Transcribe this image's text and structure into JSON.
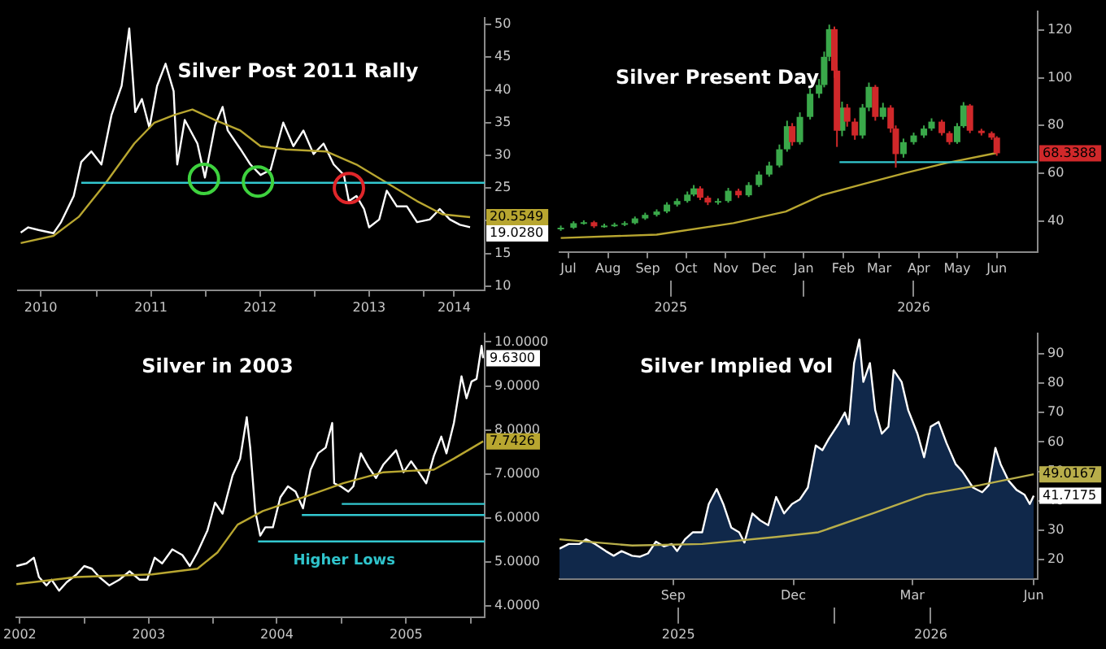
{
  "chart_data": [
    {
      "type": "line",
      "title": "Silver Post 2011 Rally",
      "xlim": [
        2010.28,
        2014.56
      ],
      "xticks": [
        {
          "value": 2010.49,
          "label": "2010"
        },
        {
          "value": 2011,
          "label": null
        },
        {
          "value": 2011.5,
          "label": "2011"
        },
        {
          "value": 2012,
          "label": null
        },
        {
          "value": 2012.5,
          "label": "2012"
        },
        {
          "value": 2013,
          "label": null
        },
        {
          "value": 2013.5,
          "label": "2013"
        },
        {
          "value": 2014,
          "label": null
        },
        {
          "value": 2014.28,
          "label": "2014"
        }
      ],
      "ylim": [
        9.4,
        51
      ],
      "yticks": [
        10,
        15,
        {
          "value": 20,
          "label": null
        },
        25,
        30,
        35,
        40,
        45,
        50
      ],
      "series": [
        {
          "color": "#ffffff",
          "x": [
            2010.306,
            2010.375,
            2010.468,
            2010.606,
            2010.676,
            2010.792,
            2010.861,
            2010.954,
            2011.046,
            2011.139,
            2011.231,
            2011.301,
            2011.356,
            2011.417,
            2011.486,
            2011.556,
            2011.634,
            2011.708,
            2011.741,
            2011.81,
            2011.926,
            2011.995,
            2012.088,
            2012.157,
            2012.204,
            2012.319,
            2012.412,
            2012.505,
            2012.597,
            2012.713,
            2012.806,
            2012.898,
            2012.991,
            2013.083,
            2013.176,
            2013.269,
            2013.315,
            2013.384,
            2013.454,
            2013.5,
            2013.593,
            2013.662,
            2013.755,
            2013.847,
            2013.94,
            2014.056,
            2014.148,
            2014.241,
            2014.333,
            2014.426
          ],
          "values": [
            18.2,
            19.0,
            18.6,
            18.1,
            19.8,
            23.8,
            29.0,
            30.6,
            28.6,
            36.2,
            40.6,
            49.4,
            36.6,
            38.6,
            34.2,
            40.6,
            44.0,
            39.8,
            28.6,
            35.4,
            31.8,
            26.6,
            34.6,
            37.4,
            33.8,
            31.0,
            28.6,
            27.0,
            27.8,
            35.0,
            31.4,
            33.8,
            30.2,
            31.8,
            28.6,
            27.0,
            23.0,
            23.8,
            21.8,
            19.0,
            20.2,
            24.6,
            22.2,
            22.2,
            19.8,
            20.2,
            21.8,
            20.2,
            19.4,
            19.028
          ],
          "value_labels": [
            null,
            null,
            null,
            null,
            null,
            null,
            null,
            null,
            null,
            null,
            null,
            null,
            null,
            null,
            null,
            null,
            null,
            null,
            null,
            null,
            null,
            null,
            null,
            null,
            null,
            null,
            null,
            null,
            null,
            null,
            null,
            null,
            null,
            null,
            null,
            null,
            null,
            null,
            null,
            null,
            null,
            null,
            null,
            null,
            null,
            null,
            null,
            null,
            null,
            "19.0280"
          ]
        },
        {
          "color": "#b8a630",
          "x": [
            2010.306,
            2010.606,
            2010.838,
            2011.069,
            2011.347,
            2011.532,
            2011.718,
            2011.88,
            2012.088,
            2012.319,
            2012.505,
            2012.736,
            2013.106,
            2013.384,
            2013.662,
            2013.94,
            2014.171,
            2014.426
          ],
          "values": [
            16.6,
            17.7,
            20.6,
            25.4,
            31.8,
            35.0,
            36.2,
            37.0,
            35.4,
            33.8,
            31.4,
            30.9,
            30.6,
            28.6,
            25.8,
            23.0,
            21.0,
            20.5549
          ],
          "value_labels": [
            null,
            null,
            null,
            null,
            null,
            null,
            null,
            null,
            null,
            null,
            null,
            null,
            null,
            null,
            null,
            null,
            null,
            "20.5549"
          ]
        },
        {
          "color": "#33c8d0",
          "x": [
            2010.861,
            2014.56
          ],
          "values": [
            25.8,
            25.8
          ]
        },
        {
          "type": "scatter",
          "color": "#3ed23e",
          "marker": "circle",
          "x": [
            2011.986,
            2012.481
          ],
          "values": [
            26.4,
            26.0
          ]
        },
        {
          "type": "scatter",
          "color": "#e0262a",
          "marker": "circle",
          "x": [
            2013.315
          ],
          "values": [
            25.0
          ]
        }
      ]
    },
    {
      "type": "candlestick",
      "title": "Silver Present Day",
      "xlim": [
        "2025-06-24",
        "2026-07-03"
      ],
      "xticks": [
        {
          "value": "2025-07",
          "label": "Jul"
        },
        {
          "value": "2025-08",
          "label": "Aug"
        },
        {
          "value": "2025-09",
          "label": "Sep"
        },
        {
          "value": "2025-10",
          "label": "Oct"
        },
        {
          "value": "2025-11",
          "label": "Nov"
        },
        {
          "value": "2025-12",
          "label": "Dec"
        },
        {
          "value": "2026-01",
          "label": "Jan"
        },
        {
          "value": "2026-02",
          "label": "Feb"
        },
        {
          "value": "2026-03",
          "label": "Mar"
        },
        {
          "value": "2026-04",
          "label": "Apr"
        },
        {
          "value": "2026-05",
          "label": "May"
        },
        {
          "value": "2026-06",
          "label": "Jun"
        }
      ],
      "x2lim": [
        "2025-06-24",
        "2026-07-03"
      ],
      "x2ticks": [
        {
          "value": "2025-09-19",
          "label": "2025"
        },
        {
          "value": "2026-01-01",
          "label": null
        },
        {
          "value": "2026-03-28",
          "label": "2026"
        }
      ],
      "ylim": [
        27,
        128
      ],
      "yticks": [
        40,
        60,
        80,
        100,
        120
      ],
      "series": [
        {
          "color": "#3aa84a",
          "x": [
            "2025-06-25",
            "2025-07-05",
            "2025-07-13",
            "2025-07-29",
            "2025-08-06",
            "2025-08-14",
            "2025-08-22",
            "2025-08-30",
            "2025-09-08",
            "2025-09-16",
            "2025-09-24",
            "2025-10-02",
            "2025-10-07",
            "2025-10-26",
            "2025-11-03",
            "2025-11-19",
            "2025-11-27",
            "2025-12-05",
            "2025-12-13",
            "2025-12-19",
            "2025-12-29",
            "2026-01-06",
            "2026-01-13",
            "2026-01-17",
            "2026-01-21",
            "2026-01-31",
            "2026-02-16",
            "2026-02-21",
            "2026-03-04",
            "2026-03-20",
            "2026-03-28",
            "2026-04-05",
            "2026-04-11",
            "2026-05-01",
            "2026-05-06"
          ],
          "ohlc": [
            [
              36.5,
              38,
              35.8,
              37.1
            ],
            [
              37.1,
              39.8,
              36.6,
              39
            ],
            [
              39,
              40.2,
              38.4,
              39.4
            ],
            [
              37.7,
              38.8,
              37.1,
              38
            ],
            [
              38,
              39.2,
              37.4,
              38.4
            ],
            [
              38.4,
              39.8,
              37.8,
              39
            ],
            [
              39,
              41.8,
              38.5,
              41
            ],
            [
              41,
              43.4,
              40.4,
              42.5
            ],
            [
              42.5,
              44.8,
              41.8,
              43.9
            ],
            [
              43.9,
              47.8,
              43.2,
              46.8
            ],
            [
              46.8,
              49.4,
              46,
              48.3
            ],
            [
              48.3,
              52.3,
              47.6,
              51
            ],
            [
              51,
              55,
              50.3,
              53.6
            ],
            [
              47.7,
              49.4,
              46.8,
              48.3
            ],
            [
              48.3,
              53.8,
              47.6,
              52.6
            ],
            [
              50.7,
              56.2,
              50,
              55
            ],
            [
              55,
              60.8,
              54.2,
              59.4
            ],
            [
              59.4,
              64.8,
              58.5,
              63.2
            ],
            [
              63.2,
              72,
              62.4,
              70
            ],
            [
              70,
              82,
              69,
              79.7
            ],
            [
              73,
              85.5,
              72,
              83.6
            ],
            [
              83.6,
              95.5,
              82.5,
              93.3
            ],
            [
              93.3,
              99.5,
              91.5,
              97
            ],
            [
              97,
              111,
              96,
              108.8
            ],
            [
              108.8,
              122.3,
              107,
              120.4
            ],
            [
              77.8,
              90,
              75.5,
              87.5
            ],
            [
              75.8,
              89,
              74.5,
              87.5
            ],
            [
              87.5,
              98,
              86,
              96.2
            ],
            [
              83.6,
              89.5,
              82.5,
              87.5
            ],
            [
              68,
              74.5,
              66.5,
              73
            ],
            [
              73,
              77,
              72,
              75.8
            ],
            [
              75.8,
              80,
              74.8,
              78.7
            ],
            [
              78.7,
              83,
              77.8,
              81.6
            ],
            [
              73,
              81,
              72.3,
              79.7
            ],
            [
              79.7,
              89.8,
              79,
              88.4
            ]
          ]
        },
        {
          "color": "#d0282a",
          "x": [
            "2025-07-21",
            "2025-10-12",
            "2025-10-18",
            "2025-11-11",
            "2025-12-23",
            "2026-01-25",
            "2026-01-27",
            "2026-02-04",
            "2026-02-10",
            "2026-02-26",
            "2026-03-10",
            "2026-03-14",
            "2026-04-19",
            "2026-04-25",
            "2026-05-11",
            "2026-05-20",
            "2026-05-28",
            "2026-06-01"
          ],
          "ohlc": [
            [
              39.4,
              40,
              37,
              37.7
            ],
            [
              53.6,
              54.5,
              48.7,
              49.7
            ],
            [
              49.7,
              50.5,
              46.6,
              47.7
            ],
            [
              52.6,
              53.5,
              49.6,
              50.7
            ],
            [
              79.7,
              81,
              71.5,
              73
            ],
            [
              120.4,
              121.5,
              100,
              103
            ],
            [
              103,
              104.5,
              71,
              77.8
            ],
            [
              87.5,
              89,
              79.5,
              81.6
            ],
            [
              81.6,
              83,
              74,
              75.8
            ],
            [
              96.2,
              97,
              82,
              83.6
            ],
            [
              87.5,
              88.5,
              77,
              78.7
            ],
            [
              78.7,
              80,
              62.3,
              68
            ],
            [
              81.6,
              82.4,
              75.8,
              76.8
            ],
            [
              76.8,
              77.6,
              72,
              73
            ],
            [
              88.4,
              89,
              76.8,
              77.8
            ],
            [
              77.8,
              78.6,
              75.8,
              76.8
            ],
            [
              76.8,
              77.5,
              74,
              74.9
            ],
            [
              74.9,
              75.5,
              67.3,
              68.3388
            ]
          ],
          "value_labels": [
            null,
            null,
            null,
            null,
            null,
            null,
            null,
            null,
            null,
            null,
            null,
            null,
            null,
            null,
            null,
            null,
            null,
            "68.3388"
          ]
        },
        {
          "type": "line",
          "color": "#b8a630",
          "x": [
            "2025-06-25",
            "2025-09-08",
            "2025-11-07",
            "2025-12-18",
            "2026-01-15",
            "2026-02-17",
            "2026-03-21",
            "2026-04-22",
            "2026-06-01"
          ],
          "values": [
            32.8,
            34.2,
            39,
            43.9,
            50.7,
            55.5,
            60,
            64.2,
            68.5
          ]
        },
        {
          "type": "line",
          "color": "#33c8d0",
          "x": [
            "2026-01-29",
            "2026-07-03"
          ],
          "values": [
            64.6,
            64.6
          ]
        }
      ]
    },
    {
      "type": "line",
      "title": "Silver in 2003",
      "xlim": [
        2002.47,
        2006.11
      ],
      "xticks": [
        {
          "value": 2002.5,
          "label": "2002"
        },
        {
          "value": 2003,
          "label": null
        },
        {
          "value": 2003.5,
          "label": "2003"
        },
        {
          "value": 2004,
          "label": null
        },
        {
          "value": 2004.496,
          "label": "2004"
        },
        {
          "value": 2005,
          "label": null
        },
        {
          "value": 2005.5,
          "label": "2005"
        },
        {
          "value": 2006,
          "label": null
        }
      ],
      "ylim": [
        3.75,
        10.2
      ],
      "yticks": [
        {
          "value": 4,
          "label": "4.0000"
        },
        {
          "value": 5,
          "label": "5.0000"
        },
        {
          "value": 6,
          "label": "6.0000"
        },
        {
          "value": 7,
          "label": "7.0000"
        },
        {
          "value": 8,
          "label": "8.0000"
        },
        {
          "value": 9,
          "label": "9.0000"
        },
        {
          "value": 10,
          "label": "10.0000"
        }
      ],
      "annotations": [
        "Higher Lows"
      ],
      "series": [
        {
          "color": "#ffffff",
          "x": [
            2002.473,
            2002.551,
            2002.609,
            2002.648,
            2002.707,
            2002.746,
            2002.805,
            2002.863,
            2002.941,
            2003.0,
            2003.059,
            2003.117,
            2003.195,
            2003.273,
            2003.352,
            2003.43,
            2003.488,
            2003.547,
            2003.605,
            2003.684,
            2003.762,
            2003.82,
            2003.879,
            2003.957,
            2004.016,
            2004.074,
            2004.152,
            2004.211,
            2004.262,
            2004.289,
            2004.328,
            2004.367,
            2004.406,
            2004.465,
            2004.523,
            2004.582,
            2004.641,
            2004.699,
            2004.758,
            2004.816,
            2004.875,
            2004.926,
            2004.941,
            2004.992,
            2005.051,
            2005.09,
            2005.148,
            2005.207,
            2005.266,
            2005.324,
            2005.422,
            2005.48,
            2005.539,
            2005.598,
            2005.656,
            2005.715,
            2005.773,
            2005.813,
            2005.871,
            2005.93,
            2005.969,
            2006.008,
            2006.047,
            2006.086,
            2006.098
          ],
          "values": [
            4.91,
            4.97,
            5.1,
            4.66,
            4.47,
            4.6,
            4.35,
            4.54,
            4.72,
            4.91,
            4.85,
            4.66,
            4.47,
            4.6,
            4.79,
            4.6,
            4.6,
            5.1,
            4.97,
            5.29,
            5.16,
            4.91,
            5.22,
            5.72,
            6.35,
            6.1,
            6.97,
            7.35,
            8.29,
            7.6,
            6.16,
            5.6,
            5.79,
            5.79,
            6.47,
            6.72,
            6.6,
            6.22,
            7.1,
            7.47,
            7.6,
            8.16,
            6.79,
            6.72,
            6.6,
            6.72,
            7.47,
            7.16,
            6.91,
            7.22,
            7.54,
            7.04,
            7.29,
            7.04,
            6.79,
            7.41,
            7.85,
            7.47,
            8.16,
            9.22,
            8.72,
            9.1,
            9.16,
            9.91,
            9.63
          ],
          "value_labels": [
            null,
            null,
            null,
            null,
            null,
            null,
            null,
            null,
            null,
            null,
            null,
            null,
            null,
            null,
            null,
            null,
            null,
            null,
            null,
            null,
            null,
            null,
            null,
            null,
            null,
            null,
            null,
            null,
            null,
            null,
            null,
            null,
            null,
            null,
            null,
            null,
            null,
            null,
            null,
            null,
            null,
            null,
            null,
            null,
            null,
            null,
            null,
            null,
            null,
            null,
            null,
            null,
            null,
            null,
            null,
            null,
            null,
            null,
            null,
            null,
            null,
            null,
            null,
            null,
            "9.6300"
          ]
        },
        {
          "color": "#b8a630",
          "x": [
            2002.473,
            2002.941,
            2003.527,
            2003.879,
            2004.035,
            2004.191,
            2004.387,
            2004.699,
            2005.012,
            2005.324,
            2005.715,
            2005.871,
            2006.098
          ],
          "values": [
            4.5,
            4.66,
            4.72,
            4.85,
            5.22,
            5.85,
            6.16,
            6.47,
            6.79,
            7.04,
            7.1,
            7.35,
            7.7426
          ],
          "value_labels": [
            null,
            null,
            null,
            null,
            null,
            null,
            null,
            null,
            null,
            null,
            null,
            null,
            "7.7426"
          ]
        },
        {
          "color": "#33c8d0",
          "x": [
            2004.35,
            2006.11
          ],
          "values": [
            5.47,
            5.47
          ]
        },
        {
          "color": "#33c8d0",
          "x": [
            2004.69,
            2006.11
          ],
          "values": [
            6.07,
            6.07
          ]
        },
        {
          "color": "#33c8d0",
          "x": [
            2005.0,
            2006.11
          ],
          "values": [
            6.32,
            6.32
          ]
        }
      ]
    },
    {
      "type": "area",
      "title": "Silver Implied Vol",
      "xlim": [
        "2025-06-07",
        "2026-06-04"
      ],
      "xticks": [
        {
          "value": "2025-09",
          "label": "Sep"
        },
        {
          "value": "2025-12",
          "label": "Dec"
        },
        {
          "value": "2026-03",
          "label": "Mar"
        },
        {
          "value": "2026-06",
          "label": "Jun"
        }
      ],
      "x2lim": [
        "2025-06-07",
        "2026-06-04"
      ],
      "x2ticks": [
        {
          "value": "2025-09-05",
          "label": "2025"
        },
        {
          "value": "2026-01-01",
          "label": null
        },
        {
          "value": "2026-03-15",
          "label": "2026"
        }
      ],
      "ylim": [
        13.5,
        97
      ],
      "yticks": [
        20,
        30,
        40,
        50,
        60,
        70,
        80,
        90
      ],
      "series": [
        {
          "color": "#ffffff",
          "x": [
            "2025-06-07",
            "2025-06-14",
            "2025-06-22",
            "2025-06-27",
            "2025-07-04",
            "2025-07-12",
            "2025-07-18",
            "2025-07-24",
            "2025-08-01",
            "2025-08-07",
            "2025-08-13",
            "2025-08-19",
            "2025-08-25",
            "2025-08-31",
            "2025-09-04",
            "2025-09-10",
            "2025-09-16",
            "2025-09-23",
            "2025-09-28",
            "2025-10-04",
            "2025-10-09",
            "2025-10-15",
            "2025-10-21",
            "2025-10-25",
            "2025-10-31",
            "2025-11-06",
            "2025-11-12",
            "2025-11-18",
            "2025-11-24",
            "2025-11-30",
            "2025-12-06",
            "2025-12-12",
            "2025-12-18",
            "2025-12-23",
            "2025-12-28",
            "2026-01-04",
            "2026-01-09",
            "2026-01-12",
            "2026-01-16",
            "2026-01-20",
            "2026-01-23",
            "2026-01-28",
            "2026-02-01",
            "2026-02-06",
            "2026-02-11",
            "2026-02-15",
            "2026-02-21",
            "2026-02-26",
            "2026-03-05",
            "2026-03-10",
            "2026-03-15",
            "2026-03-21",
            "2026-03-27",
            "2026-04-03",
            "2026-04-08",
            "2026-04-16",
            "2026-04-23",
            "2026-04-28",
            "2026-05-03",
            "2026-05-07",
            "2026-05-13",
            "2026-05-19",
            "2026-05-25",
            "2026-05-29",
            "2026-06-01"
          ],
          "values": [
            23.7,
            25.3,
            25.3,
            26.9,
            25.3,
            22.9,
            21.3,
            22.9,
            21.3,
            21.0,
            22.1,
            26.1,
            24.5,
            25.3,
            22.9,
            26.9,
            29.3,
            29.3,
            38.9,
            44.0,
            38.9,
            30.9,
            29.3,
            25.8,
            35.7,
            33.3,
            31.7,
            41.3,
            35.7,
            38.9,
            40.5,
            44.5,
            58.8,
            57.2,
            61.2,
            66.0,
            70.0,
            66.0,
            86.8,
            94.8,
            80.4,
            86.8,
            70.8,
            62.8,
            65.2,
            84.4,
            80.4,
            70.8,
            62.8,
            54.8,
            65.2,
            66.8,
            59.6,
            52.4,
            50.0,
            44.5,
            42.9,
            45.3,
            58.0,
            52.4,
            46.8,
            43.7,
            42.1,
            38.9,
            41.7175
          ],
          "value_labels": [
            null,
            null,
            null,
            null,
            null,
            null,
            null,
            null,
            null,
            null,
            null,
            null,
            null,
            null,
            null,
            null,
            null,
            null,
            null,
            null,
            null,
            null,
            null,
            null,
            null,
            null,
            null,
            null,
            null,
            null,
            null,
            null,
            null,
            null,
            null,
            null,
            null,
            null,
            null,
            null,
            null,
            null,
            null,
            null,
            null,
            null,
            null,
            null,
            null,
            null,
            null,
            null,
            null,
            null,
            null,
            null,
            null,
            null,
            null,
            null,
            null,
            null,
            null,
            null,
            "41.7175"
          ]
        },
        {
          "type": "line",
          "color": "#b8ae4a",
          "x": [
            "2025-06-07",
            "2025-08-01",
            "2025-09-23",
            "2025-11-18",
            "2025-12-20",
            "2026-01-30",
            "2026-03-11",
            "2026-04-21",
            "2026-06-01"
          ],
          "values": [
            26.9,
            24.8,
            25.3,
            27.7,
            29.3,
            35.7,
            42.1,
            45.3,
            49.0167
          ],
          "value_labels": [
            null,
            null,
            null,
            null,
            null,
            null,
            null,
            null,
            "49.0167"
          ]
        }
      ]
    }
  ]
}
